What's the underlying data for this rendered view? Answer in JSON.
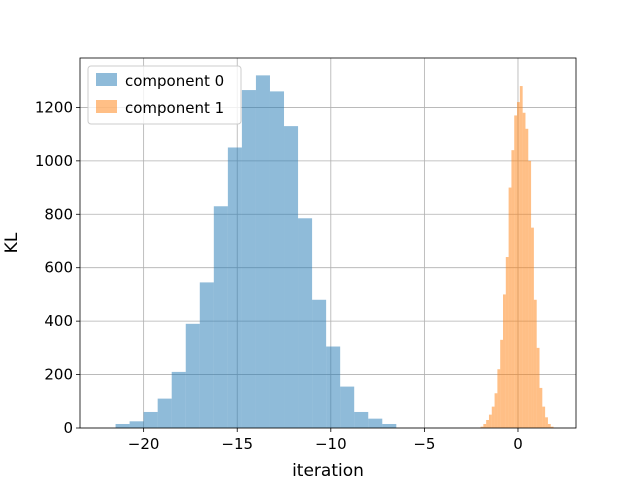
{
  "chart_data": {
    "type": "bar",
    "title": "",
    "xlabel": "iteration",
    "ylabel": "KL",
    "xlim": [
      -23.4,
      3.1
    ],
    "ylim": [
      0,
      1385
    ],
    "xticks": [
      -20,
      -15,
      -10,
      -5,
      0
    ],
    "xtick_labels": [
      "−20",
      "−15",
      "−10",
      "−5",
      "0"
    ],
    "yticks": [
      0,
      200,
      400,
      600,
      800,
      1000,
      1200
    ],
    "ytick_labels": [
      "0",
      "200",
      "400",
      "600",
      "800",
      "1000",
      "1200"
    ],
    "grid": true,
    "legend": "upper-left",
    "series": [
      {
        "name": "component 0",
        "color": "#1f77b4",
        "alpha": 0.5,
        "bin_edges": [
          -21.5,
          -20.75,
          -20.0,
          -19.25,
          -18.5,
          -17.75,
          -17.0,
          -16.25,
          -15.5,
          -14.75,
          -14.0,
          -13.25,
          -12.5,
          -11.75,
          -11.0,
          -10.25,
          -9.5,
          -8.75,
          -8.0,
          -7.25,
          -6.5
        ],
        "counts": [
          15,
          25,
          60,
          110,
          210,
          390,
          545,
          830,
          1050,
          1265,
          1320,
          1260,
          1130,
          785,
          480,
          305,
          155,
          60,
          35,
          15
        ]
      },
      {
        "name": "component 1",
        "color": "#ff7f0e",
        "alpha": 0.5,
        "bin_edges": [
          -2.0,
          -1.85,
          -1.7,
          -1.55,
          -1.4,
          -1.25,
          -1.1,
          -0.95,
          -0.8,
          -0.65,
          -0.5,
          -0.35,
          -0.2,
          -0.05,
          0.1,
          0.25,
          0.4,
          0.55,
          0.7,
          0.85,
          1.0,
          1.15,
          1.3,
          1.45,
          1.6,
          1.75,
          1.9
        ],
        "counts": [
          5,
          15,
          30,
          50,
          80,
          130,
          220,
          330,
          500,
          640,
          900,
          1040,
          1170,
          1220,
          1280,
          1180,
          1120,
          1000,
          750,
          480,
          300,
          150,
          80,
          40,
          15,
          5
        ]
      }
    ]
  }
}
